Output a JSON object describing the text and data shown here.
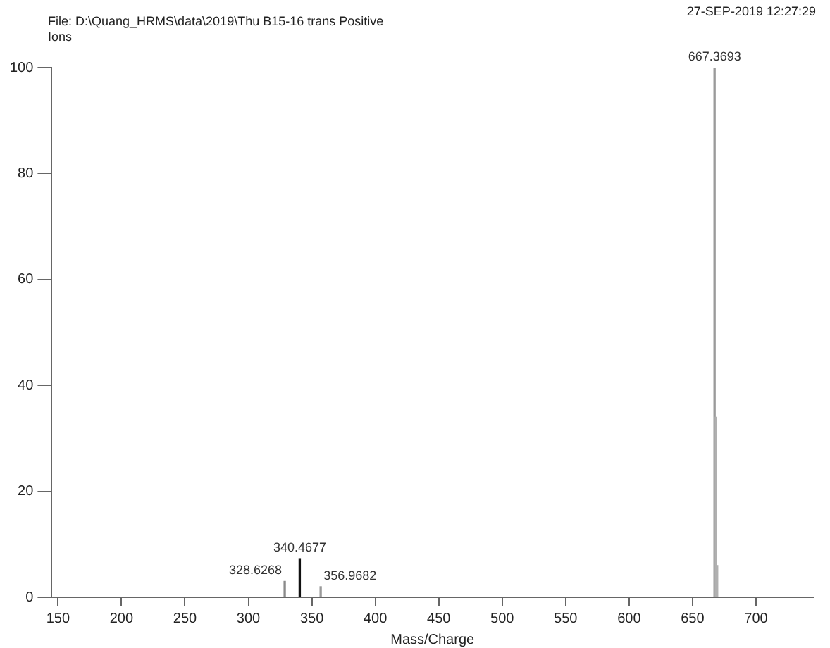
{
  "chart_data": {
    "type": "bar",
    "title": "File: D:\\Quang_HRMS\\data\\2019\\Thu B15-16 trans Positive",
    "subtitle": "Ions",
    "xlabel": "Mass/Charge",
    "annotations": [
      "27-SEP-2019 12:27:29",
      {
        "text": "328.6268",
        "x": 328.6268,
        "y": 3
      },
      {
        "text": "340.4677",
        "x": 340.4677,
        "y": 7.3
      },
      {
        "text": "356.9682",
        "x": 356.9682,
        "y": 2
      },
      {
        "text": "667.3693",
        "x": 667.3693,
        "y": 100
      }
    ],
    "x": [
      328.6268,
      340.4677,
      356.9682,
      667.3693,
      668.37,
      669.37
    ],
    "values": [
      3,
      7.3,
      2,
      100,
      34,
      6
    ],
    "colors": [
      "#8a8a8a",
      "#111111",
      "#9a9a9a",
      "#9a9a9a",
      "#b0b0b0",
      "#b0b0b0"
    ],
    "xlim": [
      145,
      745
    ],
    "xticks": [
      150,
      200,
      250,
      300,
      350,
      400,
      450,
      500,
      550,
      600,
      650,
      700
    ],
    "ylim": [
      0,
      100
    ],
    "yticks": [
      0,
      20,
      40,
      60,
      80,
      100
    ],
    "legend": false
  }
}
